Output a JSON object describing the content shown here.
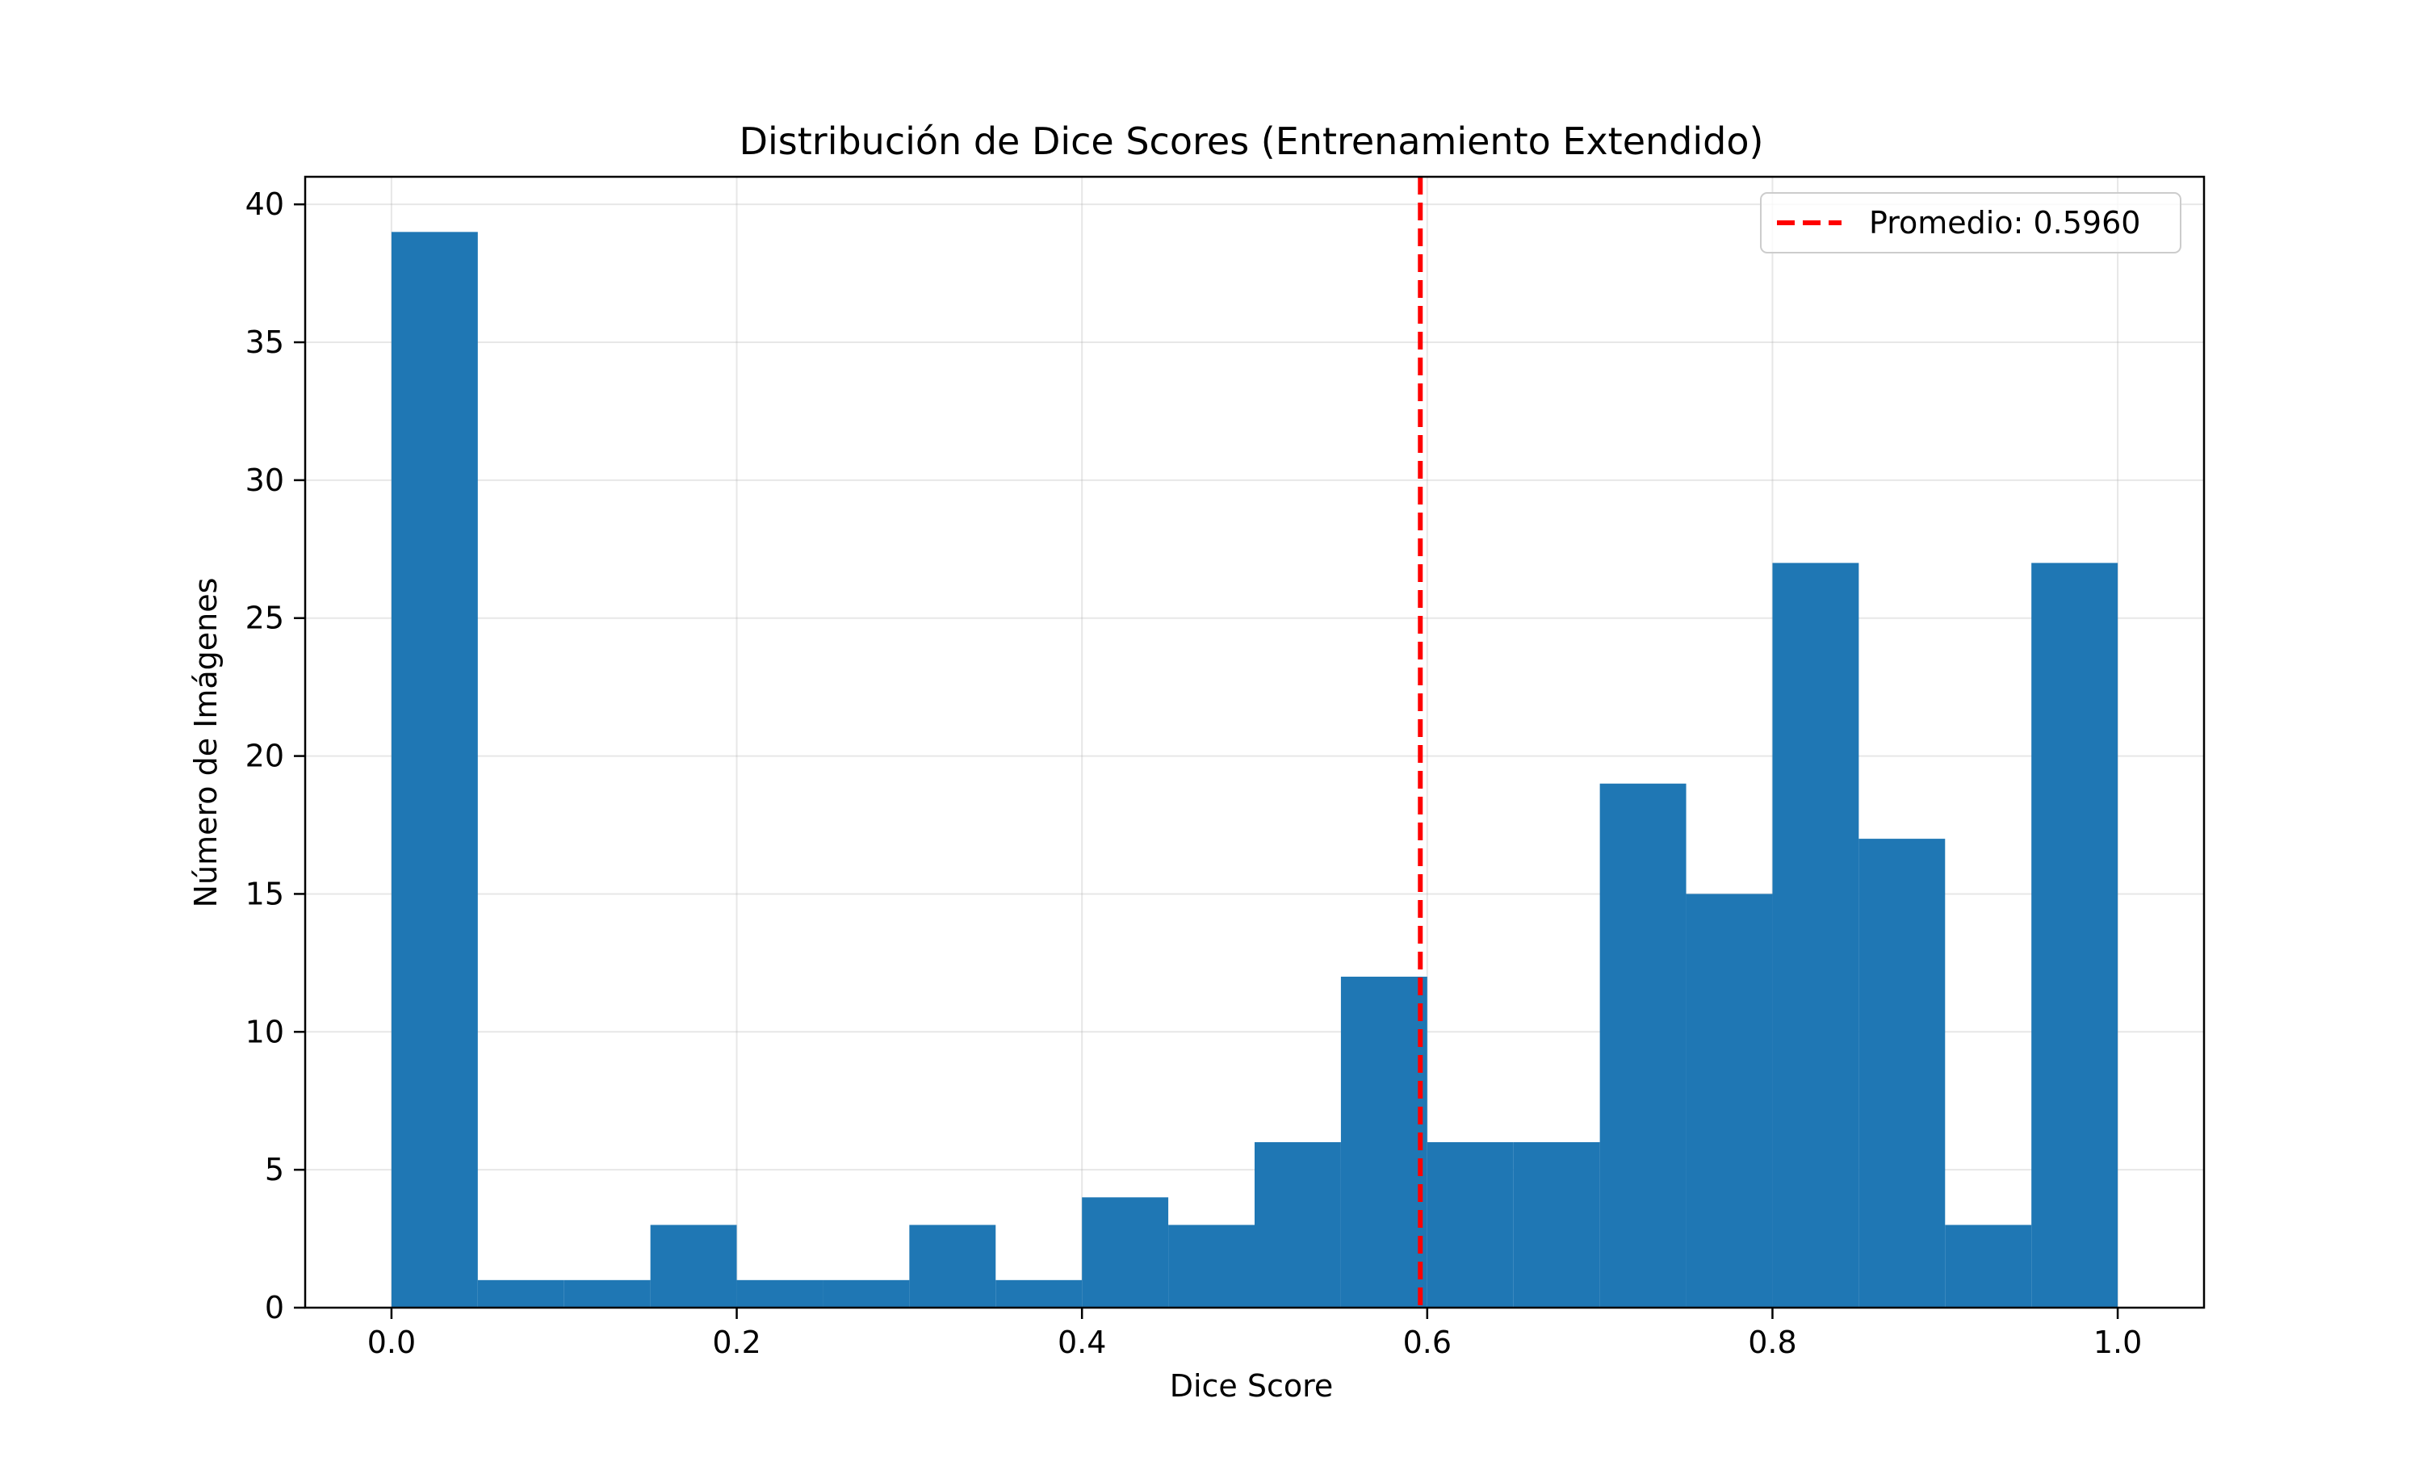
{
  "chart_data": {
    "type": "bar",
    "title": "Distribución de Dice Scores (Entrenamiento Extendido)",
    "xlabel": "Dice Score",
    "ylabel": "Número de Imágenes",
    "xlim": [
      -0.05,
      1.05
    ],
    "ylim": [
      0,
      41
    ],
    "x_ticks": [
      0.0,
      0.2,
      0.4,
      0.6,
      0.8,
      1.0
    ],
    "x_tick_labels": [
      "0.0",
      "0.2",
      "0.4",
      "0.6",
      "0.8",
      "1.0"
    ],
    "y_ticks": [
      0,
      5,
      10,
      15,
      20,
      25,
      30,
      35,
      40
    ],
    "y_tick_labels": [
      "0",
      "5",
      "10",
      "15",
      "20",
      "25",
      "30",
      "35",
      "40"
    ],
    "grid": true,
    "bin_edges": [
      0.0,
      0.05,
      0.1,
      0.15,
      0.2,
      0.25,
      0.3,
      0.35,
      0.4,
      0.45,
      0.5,
      0.55,
      0.6,
      0.65,
      0.7,
      0.75,
      0.8,
      0.85,
      0.9,
      0.95,
      1.0
    ],
    "counts": [
      39,
      1,
      1,
      3,
      1,
      1,
      3,
      1,
      4,
      3,
      6,
      12,
      6,
      6,
      19,
      15,
      27,
      17,
      3,
      27
    ],
    "bar_color": "#1f77b4",
    "mean_line": {
      "value": 0.596,
      "label": "Promedio: 0.5960",
      "color": "#ff0000",
      "style": "dashed"
    },
    "legend_position": "top-right"
  }
}
